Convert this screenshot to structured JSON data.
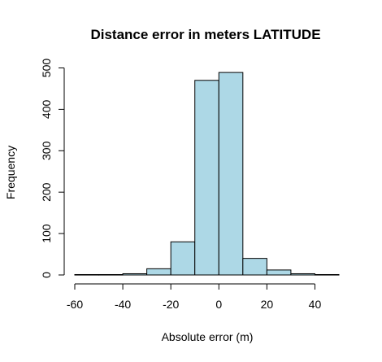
{
  "chart_data": {
    "type": "bar",
    "title": "Distance error in meters LATITUDE",
    "xlabel": "Absolute error (m)",
    "ylabel": "Frequency",
    "xlim": [
      -60,
      50
    ],
    "ylim": [
      0,
      500
    ],
    "bin_width": 10,
    "bins": [
      {
        "from": -60,
        "to": -50,
        "count": 1
      },
      {
        "from": -50,
        "to": -40,
        "count": 1
      },
      {
        "from": -40,
        "to": -30,
        "count": 3
      },
      {
        "from": -30,
        "to": -20,
        "count": 15
      },
      {
        "from": -20,
        "to": -10,
        "count": 80
      },
      {
        "from": -10,
        "to": 0,
        "count": 470
      },
      {
        "from": 0,
        "to": 10,
        "count": 489
      },
      {
        "from": 10,
        "to": 20,
        "count": 40
      },
      {
        "from": 20,
        "to": 30,
        "count": 12
      },
      {
        "from": 30,
        "to": 40,
        "count": 3
      },
      {
        "from": 40,
        "to": 50,
        "count": 1
      }
    ],
    "x_ticks": [
      -60,
      -40,
      -20,
      0,
      20,
      40
    ],
    "y_ticks": [
      0,
      100,
      200,
      300,
      400,
      500
    ],
    "bar_fill": "#add8e6",
    "bar_stroke": "#000000",
    "grid": false
  }
}
